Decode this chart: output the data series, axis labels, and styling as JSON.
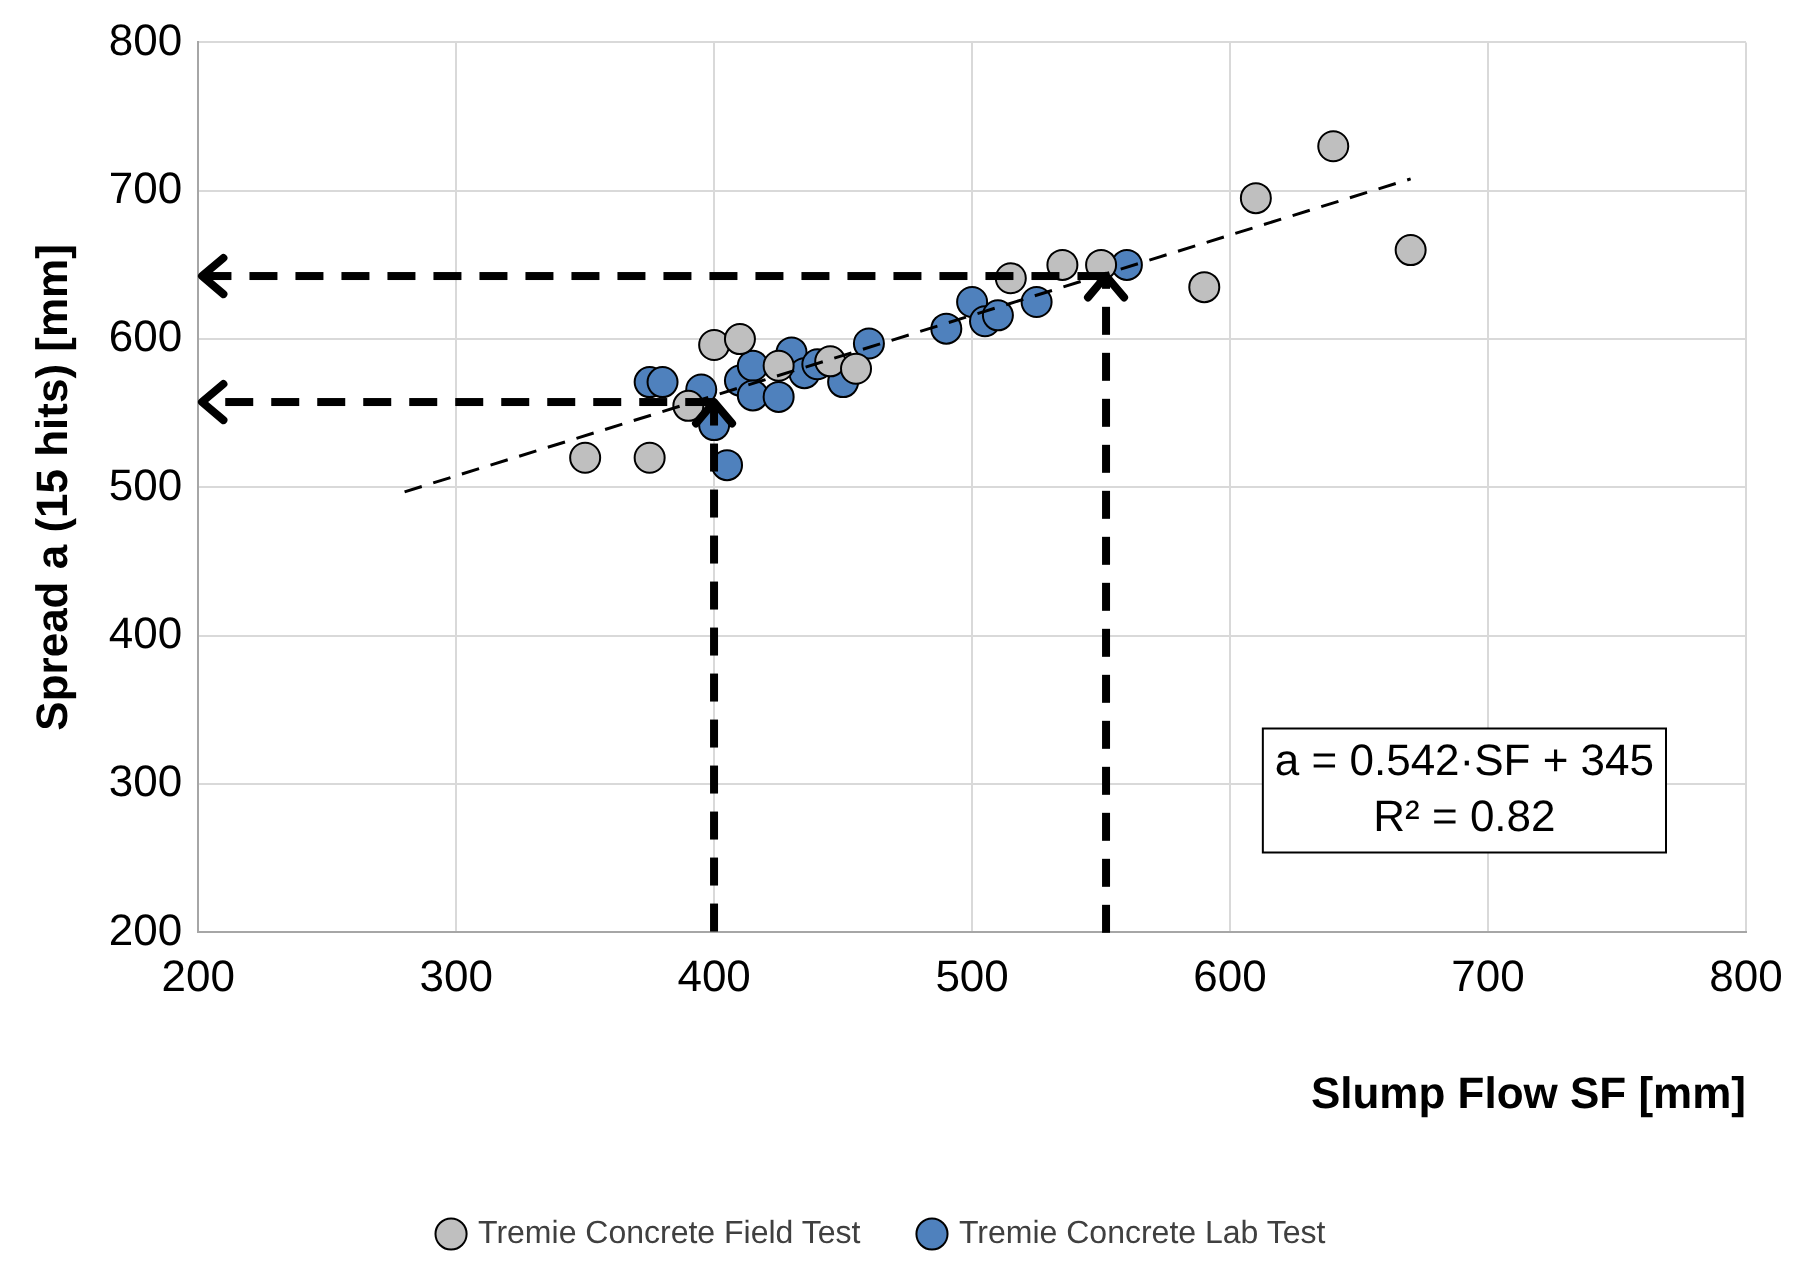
{
  "chart_data": {
    "type": "scatter",
    "xlabel": "Slump Flow SF [mm]",
    "ylabel": "Spread a (15 hits) [mm]",
    "xlim": [
      200,
      800
    ],
    "xticks": [
      200,
      300,
      400,
      500,
      600,
      700,
      800
    ],
    "ylim": [
      200,
      800
    ],
    "yticks": [
      200,
      300,
      400,
      500,
      600,
      700,
      800
    ],
    "grid": true,
    "legend": "bottom",
    "marker": "circle",
    "annotations": [
      "a = 0.542·SF + 345",
      "R² = 0.82"
    ],
    "series": [
      {
        "name": "Tremie Concrete Field Test",
        "color": "#bfbfbf",
        "x": [
          350,
          375,
          390,
          400,
          410,
          425,
          445,
          455,
          515,
          535,
          550,
          590,
          610,
          640,
          670
        ],
        "values": [
          520,
          520,
          555,
          596,
          600,
          582,
          585,
          580,
          641,
          650,
          650,
          635,
          695,
          730,
          660
        ]
      },
      {
        "name": "Tremie Concrete Lab Test",
        "color": "#4f81bd",
        "x": [
          375,
          380,
          395,
          400,
          405,
          410,
          415,
          415,
          425,
          430,
          435,
          440,
          450,
          460,
          490,
          500,
          505,
          510,
          525,
          560
        ],
        "values": [
          571,
          571,
          566,
          542,
          515,
          572,
          582,
          562,
          561,
          591,
          577,
          583,
          571,
          597,
          607,
          625,
          612,
          616,
          625,
          650
        ]
      },
      {
        "type": "line",
        "color": "#000000",
        "line_style": "dashed",
        "marker": "none",
        "x": [
          280,
          670
        ],
        "values": [
          497,
          708
        ]
      }
    ]
  }
}
